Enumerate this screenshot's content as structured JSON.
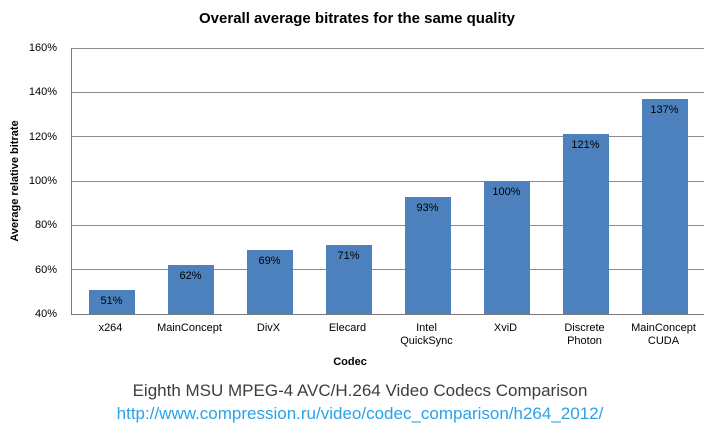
{
  "chart_data": {
    "type": "bar",
    "title": "Overall average bitrates for the same quality",
    "xlabel": "Codec",
    "ylabel": "Average relative bitrate",
    "categories": [
      "x264",
      "MainConcept",
      "DivX",
      "Elecard",
      "Intel QuickSync",
      "XviD",
      "Discrete Photon",
      "MainConcept CUDA"
    ],
    "category_labels": [
      "x264",
      "MainConcept",
      "DivX",
      "Elecard",
      "Intel\nQuickSync",
      "XviD",
      "Discrete\nPhoton",
      "MainConcept\nCUDA"
    ],
    "values": [
      51,
      62,
      69,
      71,
      93,
      100,
      121,
      137
    ],
    "data_labels": [
      "51%",
      "62%",
      "69%",
      "71%",
      "93%",
      "100%",
      "121%",
      "137%"
    ],
    "ylim": [
      40,
      160
    ],
    "ytick_step": 20,
    "yticks": [
      "40%",
      "60%",
      "80%",
      "100%",
      "120%",
      "140%",
      "160%"
    ],
    "grid": true,
    "legend": "none",
    "bar_color": "#4d81bd"
  },
  "footer": {
    "caption": "Eighth MSU MPEG-4 AVC/H.264 Video Codecs Comparison",
    "url": "http://www.compression.ru/video/codec_comparison/h264_2012/"
  },
  "colors": {
    "bar": "#4d81bd",
    "gridline": "#8c8c8c",
    "axis": "#7a7a7a",
    "caption_text": "#3d3d3d",
    "link": "#2aa1e8"
  }
}
